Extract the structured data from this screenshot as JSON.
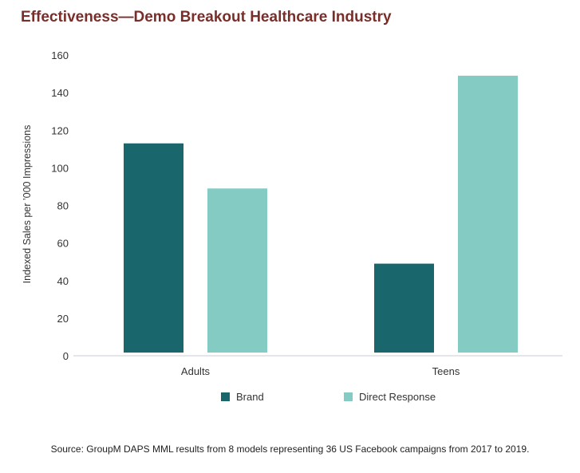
{
  "chart_data": {
    "type": "bar",
    "title": "Effectiveness—Demo Breakout Healthcare Industry",
    "ylabel": "Indexed Sales per ’000 Impressions",
    "xlabel": "",
    "categories": [
      "Adults",
      "Teens"
    ],
    "series": [
      {
        "name": "Brand",
        "color": "#1a666d",
        "values": [
          113,
          49
        ]
      },
      {
        "name": "Direct Response",
        "color": "#84cbc4",
        "values": [
          89,
          149
        ]
      }
    ],
    "ylim": [
      0,
      160
    ],
    "yticks": [
      0,
      20,
      40,
      60,
      80,
      100,
      120,
      140,
      160
    ],
    "grid": false,
    "legend_position": "bottom"
  },
  "source_note": "Source: GroupM DAPS MML results from 8 models representing 36 US Facebook campaigns from 2017 to 2019."
}
